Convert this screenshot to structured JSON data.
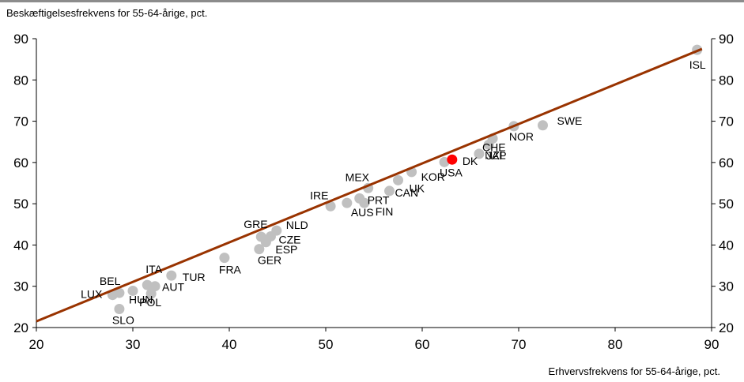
{
  "chart_data": {
    "type": "scatter",
    "ylabel": "Beskæftigelsesfrekvens for 55-64-årige, pct.",
    "xlabel": "Erhvervsfrekvens for 55-64-årige, pct.",
    "xlim": [
      20,
      90
    ],
    "ylim": [
      20,
      90
    ],
    "xticks": [
      20,
      30,
      40,
      50,
      60,
      70,
      80,
      90
    ],
    "yticks": [
      20,
      30,
      40,
      50,
      60,
      70,
      80,
      90
    ],
    "grid": false,
    "right_axis_labels": true,
    "point_color": "#c0c0c0",
    "highlight_color": "#ff0000",
    "line_color": "#993300",
    "trend_line": {
      "x": [
        20,
        89
      ],
      "y": [
        21.5,
        87.5
      ]
    },
    "points": [
      {
        "label": "ISL",
        "x": 88.5,
        "y": 87.3
      },
      {
        "label": "SWE",
        "x": 72.5,
        "y": 69
      },
      {
        "label": "NOR",
        "x": 69.5,
        "y": 68.8
      },
      {
        "label": "CHE",
        "x": 67.3,
        "y": 65.8
      },
      {
        "label": "NZL",
        "x": 66.9,
        "y": 64.3
      },
      {
        "label": "JAP",
        "x": 65.9,
        "y": 62.1
      },
      {
        "label": "DK",
        "x": 63.1,
        "y": 60.7,
        "highlight": true
      },
      {
        "label": "USA",
        "x": 62.3,
        "y": 60.1
      },
      {
        "label": "KOR",
        "x": 58.9,
        "y": 57.7
      },
      {
        "label": "UK",
        "x": 57.5,
        "y": 55.7
      },
      {
        "label": "CAN",
        "x": 56.6,
        "y": 53.1
      },
      {
        "label": "MEX",
        "x": 54.4,
        "y": 53.8
      },
      {
        "label": "PRT",
        "x": 53.5,
        "y": 51.3
      },
      {
        "label": "FIN",
        "x": 54.0,
        "y": 50.2
      },
      {
        "label": "AUS",
        "x": 52.2,
        "y": 50.2
      },
      {
        "label": "IRE",
        "x": 50.5,
        "y": 49.4
      },
      {
        "label": "NLD",
        "x": 44.9,
        "y": 43.5
      },
      {
        "label": "GRE",
        "x": 43.3,
        "y": 42.0
      },
      {
        "label": "CZE",
        "x": 44.3,
        "y": 42.1
      },
      {
        "label": "ESP",
        "x": 43.8,
        "y": 40.7
      },
      {
        "label": "GER",
        "x": 43.1,
        "y": 39.0
      },
      {
        "label": "FRA",
        "x": 39.5,
        "y": 36.9
      },
      {
        "label": "TUR",
        "x": 34.0,
        "y": 32.6
      },
      {
        "label": "ITA",
        "x": 31.5,
        "y": 30.3
      },
      {
        "label": "AUT",
        "x": 32.3,
        "y": 30.0
      },
      {
        "label": "BEL",
        "x": 28.6,
        "y": 28.4
      },
      {
        "label": "LUX",
        "x": 27.9,
        "y": 27.9
      },
      {
        "label": "HUN",
        "x": 30.0,
        "y": 28.9
      },
      {
        "label": "POL",
        "x": 31.9,
        "y": 28.2
      },
      {
        "label": "SLO",
        "x": 28.6,
        "y": 24.5
      }
    ]
  }
}
